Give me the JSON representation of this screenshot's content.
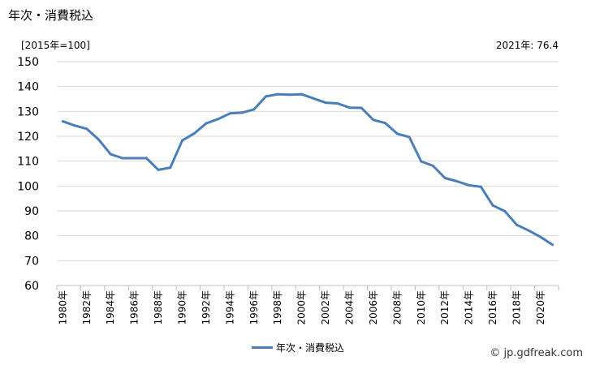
{
  "title": "年次・消費税込",
  "unit_label": "[2015年=100]",
  "note": "2021年: 76.4",
  "credit": "© jp.gdfreak.com",
  "chart_data": {
    "type": "line",
    "ylim": [
      60,
      150
    ],
    "y_ticks": [
      60,
      70,
      80,
      90,
      100,
      110,
      120,
      130,
      140,
      150
    ],
    "grid": true,
    "legend_position": "bottom",
    "x": [
      "1980年",
      "1981年",
      "1982年",
      "1983年",
      "1984年",
      "1985年",
      "1986年",
      "1987年",
      "1988年",
      "1989年",
      "1990年",
      "1991年",
      "1992年",
      "1993年",
      "1994年",
      "1995年",
      "1996年",
      "1997年",
      "1998年",
      "1999年",
      "2000年",
      "2001年",
      "2002年",
      "2003年",
      "2004年",
      "2005年",
      "2006年",
      "2007年",
      "2008年",
      "2009年",
      "2010年",
      "2011年",
      "2012年",
      "2013年",
      "2014年",
      "2015年",
      "2016年",
      "2017年",
      "2018年",
      "2019年",
      "2020年",
      "2021年"
    ],
    "x_tick_labels": [
      "1980年",
      "1982年",
      "1984年",
      "1986年",
      "1988年",
      "1990年",
      "1992年",
      "1994年",
      "1996年",
      "1998年",
      "2000年",
      "2002年",
      "2004年",
      "2006年",
      "2008年",
      "2010年",
      "2012年",
      "2014年",
      "2016年",
      "2018年",
      "2020年"
    ],
    "series": [
      {
        "name": "年次・消費税込",
        "color": "#4a7ebb",
        "values": [
          126,
          124.3,
          123,
          118.7,
          112.8,
          111.2,
          111.2,
          111.2,
          106.5,
          107.4,
          118.3,
          121.1,
          125.2,
          126.9,
          129.2,
          129.5,
          130.8,
          136.0,
          136.9,
          136.7,
          136.9,
          135.2,
          133.5,
          133.2,
          131.5,
          131.4,
          126.6,
          125.3,
          121.0,
          119.7,
          109.9,
          108.1,
          103.2,
          101.9,
          100.3,
          99.7,
          92.2,
          89.9,
          84.4,
          82.1,
          79.5,
          76.4
        ]
      }
    ]
  }
}
